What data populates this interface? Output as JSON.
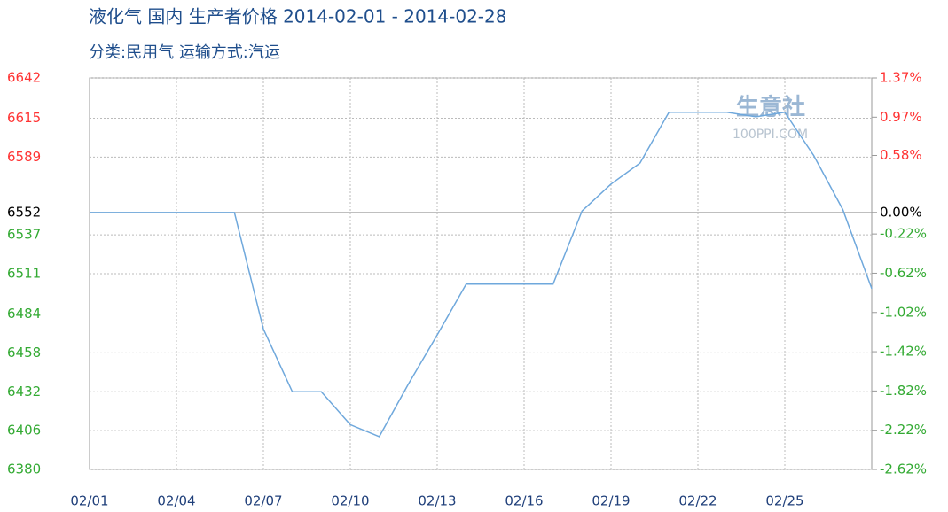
{
  "chart_data": {
    "type": "line",
    "title": "液化气 国内 生产者价格 2014-02-01 - 2014-02-28",
    "subtitle": "分类:民用气 运输方式:汽运",
    "watermark": [
      "生意社",
      "100PPI.COM"
    ],
    "categories": [
      "02/01",
      null,
      null,
      "02/04",
      null,
      null,
      "02/07",
      null,
      null,
      "02/10",
      null,
      null,
      "02/13",
      null,
      null,
      "02/16",
      null,
      null,
      "02/19",
      null,
      null,
      "02/22",
      null,
      null,
      "02/25",
      null,
      null,
      null
    ],
    "values": [
      6552,
      6552,
      6552,
      6552,
      6552,
      6552,
      6474,
      6432,
      6432,
      6410,
      6402,
      6437,
      6470,
      6504,
      6504,
      6504,
      6504,
      6553,
      6571,
      6585,
      6619,
      6619,
      6619,
      6616,
      6619,
      6590,
      6554,
      6501
    ],
    "color": "#6fa8dc",
    "ylim": [
      6380,
      6642
    ],
    "yticks": [
      6642,
      6615,
      6589,
      6552,
      6537,
      6511,
      6484,
      6458,
      6432,
      6406,
      6380
    ],
    "y2lim": [
      -2.62,
      1.37
    ],
    "y2ticks": [
      {
        "value": 1.37,
        "label": "1.37%"
      },
      {
        "value": 0.97,
        "label": "0.97%"
      },
      {
        "value": 0.58,
        "label": "0.58%"
      },
      {
        "value": 0,
        "label": "0.00%"
      },
      {
        "value": -0.22,
        "label": "-0.22%"
      },
      {
        "value": -0.62,
        "label": "-0.62%"
      },
      {
        "value": -1.02,
        "label": "-1.02%"
      },
      {
        "value": -1.42,
        "label": "-1.42%"
      },
      {
        "value": -1.82,
        "label": "-1.82%"
      },
      {
        "value": -2.22,
        "label": "-2.22%"
      },
      {
        "value": -2.62,
        "label": "-2.62%"
      }
    ],
    "grid": true,
    "up_color": "#ff3333",
    "down_color": "#33aa33"
  }
}
